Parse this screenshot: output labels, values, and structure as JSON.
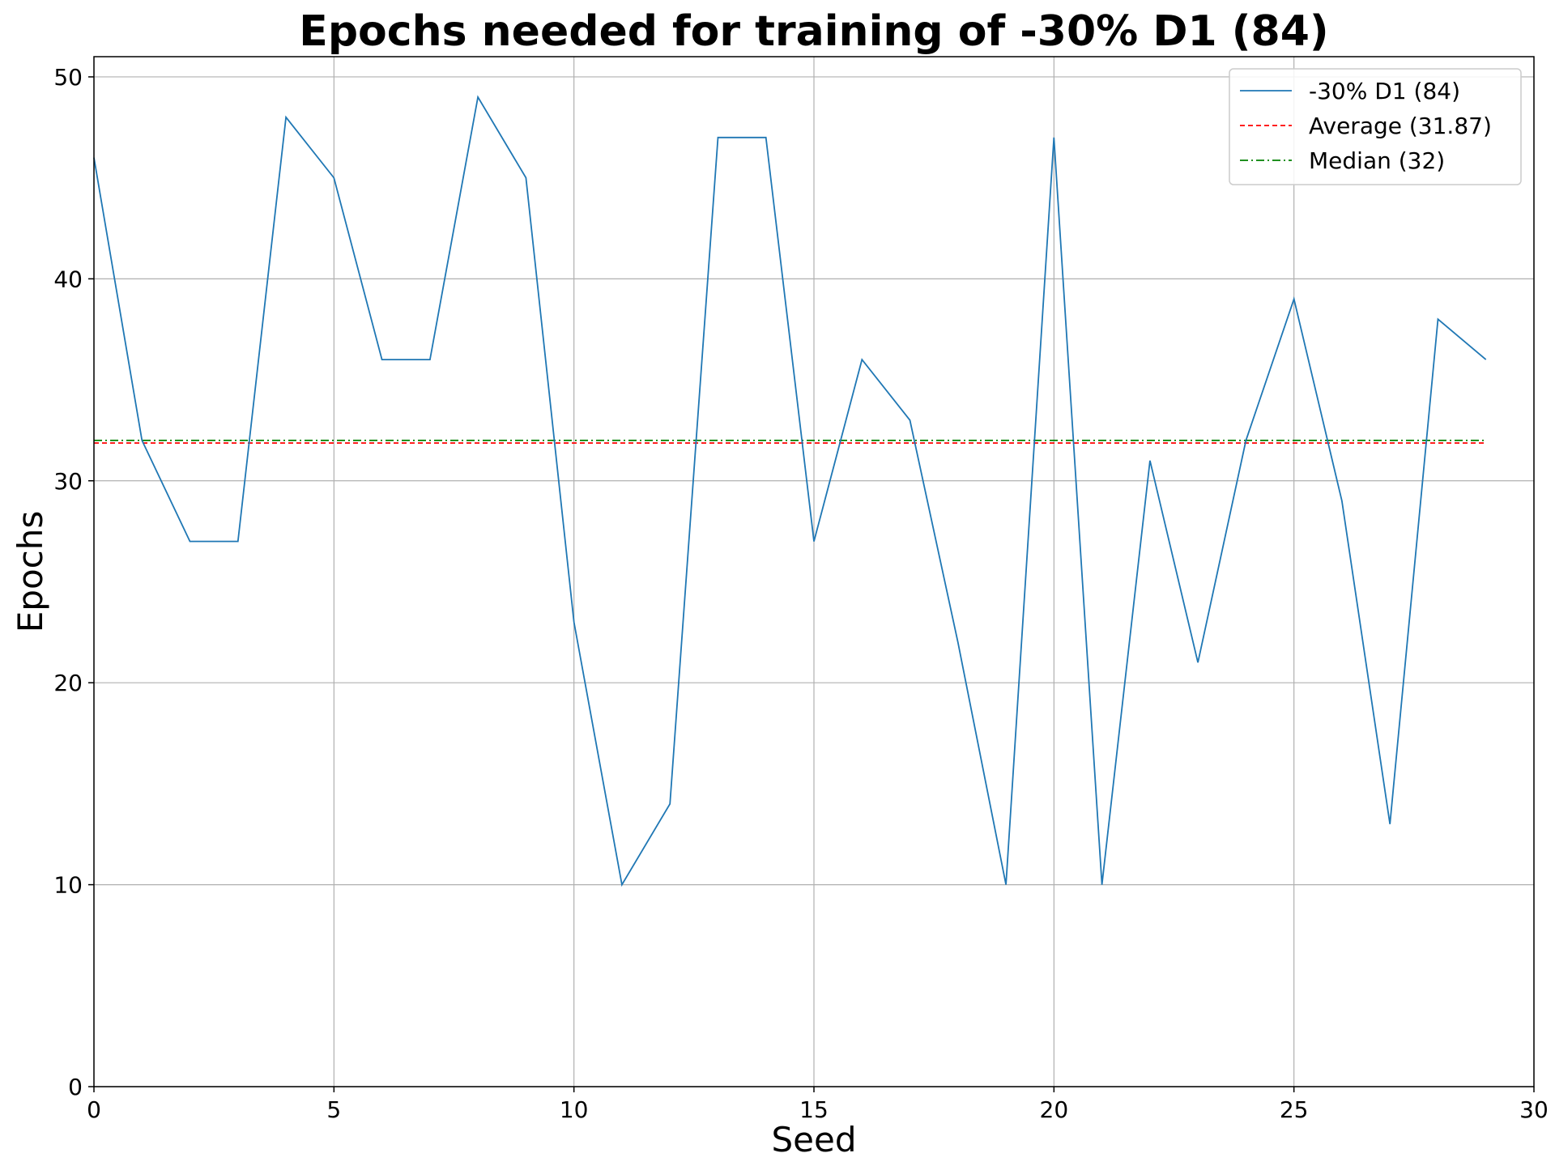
{
  "chart_data": {
    "type": "line",
    "title": "Epochs needed for training of -30% D1 (84)",
    "xlabel": "Seed",
    "ylabel": "Epochs",
    "xlim": [
      0,
      30
    ],
    "ylim": [
      0,
      51
    ],
    "xticks": [
      0,
      5,
      10,
      15,
      20,
      25,
      30
    ],
    "yticks": [
      0,
      10,
      20,
      30,
      40,
      50
    ],
    "grid": true,
    "legend_position": "top-right",
    "x": [
      0,
      1,
      2,
      3,
      4,
      5,
      6,
      7,
      8,
      9,
      10,
      11,
      12,
      13,
      14,
      15,
      16,
      17,
      18,
      19,
      20,
      21,
      22,
      23,
      24,
      25,
      26,
      27,
      28,
      29
    ],
    "series": [
      {
        "name": "-30% D1 (84)",
        "color": "#1f77b4",
        "style": "solid",
        "values": [
          46,
          32,
          27,
          27,
          48,
          45,
          36,
          36,
          49,
          45,
          23,
          10,
          14,
          47,
          47,
          27,
          36,
          33,
          22,
          10,
          47,
          10,
          31,
          21,
          32,
          39,
          29,
          13,
          38,
          36
        ]
      }
    ],
    "reference_lines": [
      {
        "name": "Average (31.87)",
        "value": 31.87,
        "color": "#ff0000",
        "style": "dashed"
      },
      {
        "name": "Median (32)",
        "value": 32,
        "color": "#008000",
        "style": "dashdot"
      }
    ]
  }
}
